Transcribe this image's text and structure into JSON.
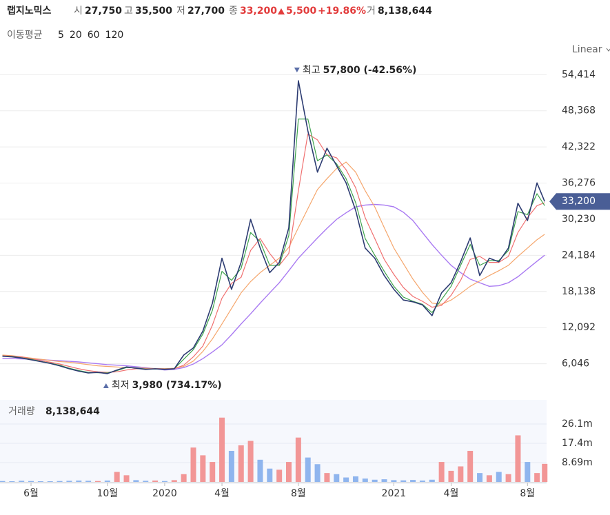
{
  "header": {
    "name": "랩지노믹스",
    "open_label": "시",
    "open": "27,750",
    "high_label": "고",
    "high": "35,500",
    "low_label": "저",
    "low": "27,700",
    "close_label": "종",
    "close": "33,200",
    "change": "5,500",
    "change_pct": "+19.86%",
    "volume_label": "거",
    "volume": "8,138,644"
  },
  "scale_label": "Linear",
  "chart_data": [
    {
      "type": "line",
      "legend_title": "이동평균",
      "x": [
        -1.5,
        -1,
        -0.5,
        0,
        0.5,
        1,
        1.5,
        2,
        2.5,
        3,
        3.5,
        4,
        4.5,
        5,
        5.5,
        6,
        6.5,
        7,
        7.5,
        8,
        8.5,
        9,
        9.5,
        10,
        10.5,
        11,
        11.5,
        12,
        12.5,
        13,
        13.5,
        14,
        14.5,
        15,
        15.5,
        16,
        16.5,
        17,
        17.5,
        18,
        18.5,
        19,
        19.5,
        20,
        20.5,
        21,
        21.5,
        22,
        22.5,
        23,
        23.5,
        24,
        24.5,
        25,
        25.5,
        26,
        26.5,
        26.9
      ],
      "xlim": [
        -1.625,
        27.0
      ],
      "ylim": [
        0,
        57100
      ],
      "yticks": [
        {
          "value": 6046,
          "label": "6,046"
        },
        {
          "value": 12092,
          "label": "12,092"
        },
        {
          "value": 18138,
          "label": "18,138"
        },
        {
          "value": 24184,
          "label": "24,184"
        },
        {
          "value": 30230,
          "label": "30,230"
        },
        {
          "value": 36276,
          "label": "36,276"
        },
        {
          "value": 42322,
          "label": "42,322"
        },
        {
          "value": 48368,
          "label": "48,368"
        },
        {
          "value": 54414,
          "label": "54,414"
        }
      ],
      "grid": true,
      "last_value": 33200,
      "last_label": "33,200",
      "last_color": "#4a5e96",
      "annotations": [
        {
          "label": "최고",
          "text": "57,800 (-42.56%)",
          "color": "#5a6ea8"
        },
        {
          "label": "최저",
          "text": "3,980 (734.17%)",
          "color": "#5a6ea8"
        }
      ],
      "series": [
        {
          "color": "#2d3c72",
          "width": 1.6,
          "values": [
            7300,
            7200,
            7000,
            6700,
            6400,
            6100,
            5700,
            5200,
            4800,
            4500,
            4600,
            4400,
            5000,
            5500,
            5300,
            5100,
            5200,
            5100,
            5200,
            7500,
            8700,
            11500,
            16200,
            23700,
            18500,
            23000,
            30200,
            25400,
            21300,
            23000,
            28800,
            53400,
            45000,
            38100,
            42100,
            39200,
            36300,
            31700,
            25400,
            23700,
            20800,
            18500,
            16700,
            16400,
            15900,
            14100,
            17900,
            19600,
            23100,
            27100,
            20800,
            23700,
            23100,
            25400,
            32900,
            30000,
            36300,
            33200
          ]
        },
        {
          "name": "5",
          "color": "#3fa34d",
          "width": 1.2,
          "values": [
            7350,
            7250,
            7050,
            6800,
            6450,
            6150,
            5800,
            5300,
            4900,
            4600,
            4550,
            4500,
            4900,
            5400,
            5350,
            5150,
            5150,
            5150,
            5200,
            6800,
            8400,
            11000,
            15000,
            21500,
            20000,
            22000,
            28000,
            26500,
            22500,
            22500,
            27500,
            47000,
            47000,
            40000,
            41000,
            39500,
            37000,
            33000,
            27000,
            24200,
            21500,
            19000,
            17200,
            16500,
            16000,
            14600,
            16800,
            19000,
            22500,
            26000,
            22500,
            23300,
            23300,
            25000,
            31500,
            31000,
            34500,
            32500
          ]
        },
        {
          "name": "20",
          "color": "#f07070",
          "width": 1.2,
          "values": [
            7400,
            7300,
            7200,
            6900,
            6600,
            6300,
            6000,
            5600,
            5200,
            4900,
            4700,
            4600,
            4700,
            5000,
            5200,
            5200,
            5200,
            5200,
            5200,
            5800,
            7200,
            9000,
            12500,
            17000,
            19500,
            20500,
            25000,
            27000,
            24500,
            22500,
            24500,
            35000,
            44500,
            43500,
            41000,
            40500,
            38500,
            35500,
            30500,
            27000,
            23500,
            21000,
            18800,
            17300,
            16500,
            15500,
            15800,
            17500,
            20000,
            23500,
            24000,
            23000,
            23000,
            24000,
            28000,
            30500,
            32500,
            33000
          ]
        },
        {
          "name": "60",
          "color": "#f5a66c",
          "width": 1.2,
          "values": [
            7500,
            7400,
            7200,
            7000,
            6800,
            6600,
            6400,
            6300,
            6100,
            5900,
            5700,
            5600,
            5500,
            5400,
            5350,
            5300,
            5250,
            5200,
            5300,
            5600,
            6500,
            8100,
            10200,
            12700,
            15300,
            17900,
            19800,
            21300,
            22500,
            23700,
            25500,
            28800,
            32000,
            35200,
            37000,
            38700,
            39800,
            38100,
            35000,
            32300,
            28800,
            25400,
            22800,
            20200,
            18000,
            16200,
            16000,
            16700,
            17800,
            19000,
            19900,
            20800,
            21600,
            22500,
            24000,
            25400,
            26800,
            27700
          ]
        },
        {
          "name": "120",
          "color": "#a97af2",
          "width": 1.4,
          "values": [
            6900,
            6900,
            6850,
            6800,
            6750,
            6650,
            6550,
            6450,
            6350,
            6200,
            6050,
            5900,
            5800,
            5700,
            5550,
            5400,
            5200,
            5000,
            5100,
            5400,
            6000,
            6900,
            8000,
            9200,
            10900,
            12700,
            14400,
            16200,
            17900,
            19600,
            21600,
            23700,
            25400,
            27100,
            28700,
            30200,
            31300,
            32300,
            32600,
            32700,
            32600,
            32300,
            31400,
            30000,
            28000,
            26000,
            24200,
            22500,
            21300,
            20200,
            19600,
            19000,
            19100,
            19600,
            20600,
            21900,
            23200,
            24200
          ]
        }
      ]
    },
    {
      "type": "bar",
      "title": "거래량",
      "current": "8,138,644",
      "x": [
        -1.5,
        -1,
        -0.5,
        0,
        0.5,
        1,
        1.5,
        2,
        2.5,
        3,
        3.5,
        4,
        4.5,
        5,
        5.5,
        6,
        6.5,
        7,
        7.5,
        8,
        8.5,
        9,
        9.5,
        10,
        10.5,
        11,
        11.5,
        12,
        12.5,
        13,
        13.5,
        14,
        14.5,
        15,
        15.5,
        16,
        16.5,
        17,
        17.5,
        18,
        18.5,
        19,
        19.5,
        20,
        20.5,
        21,
        21.5,
        22,
        22.5,
        23,
        23.5,
        24,
        24.5,
        25,
        25.5,
        26,
        26.5,
        26.9
      ],
      "xlim": [
        -1.625,
        27.0
      ],
      "xticks": [
        {
          "value": 0,
          "label": "6월"
        },
        {
          "value": 4,
          "label": "10월"
        },
        {
          "value": 7,
          "label": "2020"
        },
        {
          "value": 10,
          "label": "4월"
        },
        {
          "value": 14,
          "label": "8월"
        },
        {
          "value": 19,
          "label": "2021"
        },
        {
          "value": 22,
          "label": "4월"
        },
        {
          "value": 26,
          "label": "8월"
        }
      ],
      "ylim": [
        0,
        37000000
      ],
      "yticks": [
        {
          "value": 8690000,
          "label": "8.69m"
        },
        {
          "value": 17400000,
          "label": "17.4m"
        },
        {
          "value": 26100000,
          "label": "26.1m"
        }
      ],
      "grid": true,
      "values": [
        400000,
        300000,
        500000,
        400000,
        300000,
        300000,
        400000,
        500000,
        600000,
        500000,
        400000,
        600000,
        4500000,
        3000000,
        800000,
        500000,
        600000,
        400000,
        800000,
        3500000,
        15500000,
        12000000,
        9000000,
        29000000,
        14000000,
        16500000,
        18500000,
        10000000,
        6000000,
        5500000,
        9000000,
        20000000,
        11000000,
        8000000,
        4000000,
        3500000,
        2000000,
        2500000,
        1500000,
        1000000,
        1200000,
        800000,
        700000,
        900000,
        600000,
        1000000,
        9000000,
        5000000,
        7000000,
        14000000,
        4000000,
        3000000,
        4500000,
        3500000,
        21000000,
        9000000,
        4000000,
        8138644
      ],
      "colors": [
        "#8fb5ee",
        "#8fb5ee",
        "#8fb5ee",
        "#8fb5ee",
        "#8fb5ee",
        "#8fb5ee",
        "#8fb5ee",
        "#8fb5ee",
        "#8fb5ee",
        "#8fb5ee",
        "#f29696",
        "#8fb5ee",
        "#f29696",
        "#f29696",
        "#8fb5ee",
        "#8fb5ee",
        "#f29696",
        "#8fb5ee",
        "#f29696",
        "#f29696",
        "#f29696",
        "#f29696",
        "#f29696",
        "#f29696",
        "#8fb5ee",
        "#f29696",
        "#f29696",
        "#8fb5ee",
        "#8fb5ee",
        "#f29696",
        "#f29696",
        "#f29696",
        "#8fb5ee",
        "#8fb5ee",
        "#f29696",
        "#8fb5ee",
        "#8fb5ee",
        "#8fb5ee",
        "#8fb5ee",
        "#8fb5ee",
        "#8fb5ee",
        "#8fb5ee",
        "#8fb5ee",
        "#8fb5ee",
        "#8fb5ee",
        "#8fb5ee",
        "#f29696",
        "#f29696",
        "#f29696",
        "#f29696",
        "#8fb5ee",
        "#f29696",
        "#8fb5ee",
        "#f29696",
        "#f29696",
        "#8fb5ee",
        "#f29696",
        "#f29696"
      ]
    }
  ]
}
